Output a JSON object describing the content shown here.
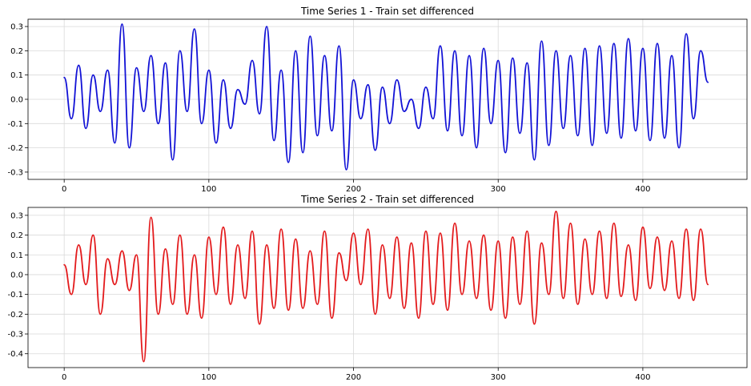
{
  "chart_data": [
    {
      "type": "line",
      "title": "Time Series 1 - Train set differenced",
      "xlabel": "",
      "ylabel": "",
      "xlim": [
        -25,
        472
      ],
      "ylim": [
        -0.33,
        0.33
      ],
      "x_ticks": [
        0,
        100,
        200,
        300,
        400
      ],
      "x_tick_labels": [
        "0",
        "100",
        "200",
        "300",
        "400"
      ],
      "y_ticks": [
        -0.3,
        -0.2,
        -0.1,
        0.0,
        0.1,
        0.2,
        0.3
      ],
      "y_tick_labels": [
        "-0.3",
        "-0.2",
        "-0.1",
        "0.0",
        "0.1",
        "0.2",
        "0.3"
      ],
      "grid": true,
      "color": "#1212d6",
      "series": [
        {
          "x_start": 0,
          "x_step": 5,
          "values": [
            0.09,
            -0.08,
            0.14,
            -0.12,
            0.1,
            -0.05,
            0.12,
            -0.18,
            0.31,
            -0.2,
            0.13,
            -0.05,
            0.18,
            -0.1,
            0.15,
            -0.25,
            0.2,
            -0.05,
            0.29,
            -0.1,
            0.12,
            -0.18,
            0.08,
            -0.12,
            0.04,
            -0.02,
            0.16,
            -0.06,
            0.3,
            -0.17,
            0.12,
            -0.26,
            0.2,
            -0.22,
            0.26,
            -0.15,
            0.18,
            -0.13,
            0.22,
            -0.29,
            0.08,
            -0.08,
            0.06,
            -0.21,
            0.05,
            -0.1,
            0.08,
            -0.05,
            0.0,
            -0.12,
            0.05,
            -0.08,
            0.22,
            -0.13,
            0.2,
            -0.15,
            0.18,
            -0.2,
            0.21,
            -0.1,
            0.16,
            -0.22,
            0.17,
            -0.14,
            0.15,
            -0.25,
            0.24,
            -0.19,
            0.2,
            -0.12,
            0.18,
            -0.15,
            0.21,
            -0.19,
            0.22,
            -0.14,
            0.23,
            -0.16,
            0.25,
            -0.13,
            0.21,
            -0.17,
            0.23,
            -0.16,
            0.18,
            -0.2,
            0.27,
            -0.08,
            0.2,
            0.07
          ]
        }
      ]
    },
    {
      "type": "line",
      "title": "Time Series 2 - Train set differenced",
      "xlabel": "",
      "ylabel": "",
      "xlim": [
        -25,
        472
      ],
      "ylim": [
        -0.47,
        0.34
      ],
      "x_ticks": [
        0,
        100,
        200,
        300,
        400
      ],
      "x_tick_labels": [
        "0",
        "100",
        "200",
        "300",
        "400"
      ],
      "y_ticks": [
        -0.4,
        -0.3,
        -0.2,
        -0.1,
        0.0,
        0.1,
        0.2,
        0.3
      ],
      "y_tick_labels": [
        "-0.4",
        "-0.3",
        "-0.2",
        "-0.1",
        "0.0",
        "0.1",
        "0.2",
        "0.3"
      ],
      "grid": true,
      "color": "#e31a1c",
      "series": [
        {
          "x_start": 0,
          "x_step": 5,
          "values": [
            0.05,
            -0.1,
            0.15,
            -0.05,
            0.2,
            -0.2,
            0.08,
            -0.05,
            0.12,
            -0.08,
            0.1,
            -0.44,
            0.29,
            -0.2,
            0.13,
            -0.15,
            0.2,
            -0.2,
            0.1,
            -0.22,
            0.19,
            -0.1,
            0.24,
            -0.15,
            0.15,
            -0.12,
            0.22,
            -0.25,
            0.15,
            -0.17,
            0.23,
            -0.18,
            0.18,
            -0.17,
            0.12,
            -0.15,
            0.22,
            -0.22,
            0.11,
            -0.03,
            0.21,
            -0.05,
            0.23,
            -0.2,
            0.15,
            -0.12,
            0.19,
            -0.17,
            0.16,
            -0.22,
            0.22,
            -0.15,
            0.21,
            -0.18,
            0.26,
            -0.1,
            0.17,
            -0.12,
            0.2,
            -0.18,
            0.17,
            -0.22,
            0.19,
            -0.15,
            0.22,
            -0.25,
            0.16,
            -0.1,
            0.32,
            -0.12,
            0.26,
            -0.15,
            0.18,
            -0.1,
            0.22,
            -0.12,
            0.26,
            -0.11,
            0.15,
            -0.13,
            0.24,
            -0.07,
            0.19,
            -0.08,
            0.17,
            -0.12,
            0.23,
            -0.13,
            0.23,
            -0.05
          ]
        }
      ]
    }
  ]
}
